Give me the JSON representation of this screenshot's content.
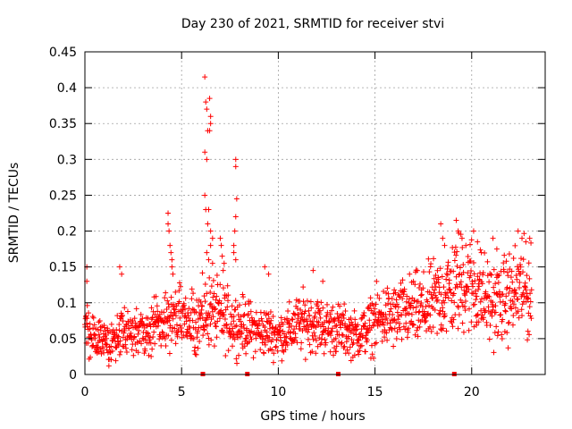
{
  "chart_data": {
    "type": "scatter",
    "title": "Day 230 of 2021, SRMTID for receiver stvi",
    "xlabel": "GPS time / hours",
    "ylabel": "SRMTID / TECUs",
    "xlim": [
      0,
      23.8
    ],
    "ylim": [
      0,
      0.45
    ],
    "x_ticks": [
      0,
      5,
      10,
      15,
      20
    ],
    "x_tick_labels": [
      "0",
      "5",
      "10",
      "15",
      "20"
    ],
    "y_ticks": [
      0,
      0.05,
      0.1,
      0.15,
      0.2,
      0.25,
      0.3,
      0.35,
      0.4,
      0.45
    ],
    "y_tick_labels": [
      "0",
      "0.05",
      "0.1",
      "0.15",
      "0.2",
      "0.25",
      "0.3",
      "0.35",
      "0.4",
      "0.45"
    ],
    "grid": true,
    "marker": "plus",
    "series_color": "#ff0000",
    "background_curve": [
      {
        "x": 0.0,
        "y": 0.07
      },
      {
        "x": 0.5,
        "y": 0.05
      },
      {
        "x": 1.0,
        "y": 0.045
      },
      {
        "x": 1.5,
        "y": 0.05
      },
      {
        "x": 2.0,
        "y": 0.06
      },
      {
        "x": 2.5,
        "y": 0.055
      },
      {
        "x": 3.0,
        "y": 0.06
      },
      {
        "x": 3.5,
        "y": 0.065
      },
      {
        "x": 4.0,
        "y": 0.07
      },
      {
        "x": 4.5,
        "y": 0.08
      },
      {
        "x": 5.0,
        "y": 0.075
      },
      {
        "x": 5.5,
        "y": 0.07
      },
      {
        "x": 6.0,
        "y": 0.08
      },
      {
        "x": 6.5,
        "y": 0.09
      },
      {
        "x": 7.0,
        "y": 0.08
      },
      {
        "x": 7.5,
        "y": 0.075
      },
      {
        "x": 8.0,
        "y": 0.07
      },
      {
        "x": 8.5,
        "y": 0.065
      },
      {
        "x": 9.0,
        "y": 0.06
      },
      {
        "x": 9.5,
        "y": 0.06
      },
      {
        "x": 10.0,
        "y": 0.055
      },
      {
        "x": 10.5,
        "y": 0.06
      },
      {
        "x": 11.0,
        "y": 0.07
      },
      {
        "x": 11.5,
        "y": 0.075
      },
      {
        "x": 12.0,
        "y": 0.07
      },
      {
        "x": 12.5,
        "y": 0.065
      },
      {
        "x": 13.0,
        "y": 0.065
      },
      {
        "x": 13.5,
        "y": 0.06
      },
      {
        "x": 14.0,
        "y": 0.055
      },
      {
        "x": 14.5,
        "y": 0.06
      },
      {
        "x": 15.0,
        "y": 0.075
      },
      {
        "x": 15.5,
        "y": 0.08
      },
      {
        "x": 16.0,
        "y": 0.08
      },
      {
        "x": 16.5,
        "y": 0.085
      },
      {
        "x": 17.0,
        "y": 0.09
      },
      {
        "x": 17.5,
        "y": 0.09
      },
      {
        "x": 18.0,
        "y": 0.1
      },
      {
        "x": 18.5,
        "y": 0.11
      },
      {
        "x": 19.0,
        "y": 0.12
      },
      {
        "x": 19.5,
        "y": 0.13
      },
      {
        "x": 20.0,
        "y": 0.125
      },
      {
        "x": 20.5,
        "y": 0.11
      },
      {
        "x": 21.0,
        "y": 0.1
      },
      {
        "x": 21.5,
        "y": 0.1
      },
      {
        "x": 22.0,
        "y": 0.11
      },
      {
        "x": 22.5,
        "y": 0.12
      },
      {
        "x": 23.0,
        "y": 0.11
      }
    ],
    "spikes": [
      {
        "x": 0.1,
        "y": 0.15
      },
      {
        "x": 0.1,
        "y": 0.13
      },
      {
        "x": 1.8,
        "y": 0.15
      },
      {
        "x": 1.9,
        "y": 0.14
      },
      {
        "x": 4.3,
        "y": 0.225
      },
      {
        "x": 4.3,
        "y": 0.21
      },
      {
        "x": 4.35,
        "y": 0.2
      },
      {
        "x": 4.4,
        "y": 0.18
      },
      {
        "x": 4.45,
        "y": 0.17
      },
      {
        "x": 4.5,
        "y": 0.16
      },
      {
        "x": 4.5,
        "y": 0.15
      },
      {
        "x": 4.55,
        "y": 0.14
      },
      {
        "x": 6.2,
        "y": 0.415
      },
      {
        "x": 6.25,
        "y": 0.38
      },
      {
        "x": 6.3,
        "y": 0.37
      },
      {
        "x": 6.45,
        "y": 0.385
      },
      {
        "x": 6.5,
        "y": 0.36
      },
      {
        "x": 6.5,
        "y": 0.35
      },
      {
        "x": 6.35,
        "y": 0.34
      },
      {
        "x": 6.45,
        "y": 0.34
      },
      {
        "x": 6.2,
        "y": 0.31
      },
      {
        "x": 6.3,
        "y": 0.3
      },
      {
        "x": 6.2,
        "y": 0.25
      },
      {
        "x": 6.25,
        "y": 0.23
      },
      {
        "x": 6.4,
        "y": 0.23
      },
      {
        "x": 6.35,
        "y": 0.21
      },
      {
        "x": 6.5,
        "y": 0.2
      },
      {
        "x": 6.6,
        "y": 0.19
      },
      {
        "x": 6.5,
        "y": 0.18
      },
      {
        "x": 6.3,
        "y": 0.17
      },
      {
        "x": 6.4,
        "y": 0.16
      },
      {
        "x": 6.6,
        "y": 0.155
      },
      {
        "x": 7.0,
        "y": 0.19
      },
      {
        "x": 7.05,
        "y": 0.18
      },
      {
        "x": 7.1,
        "y": 0.165
      },
      {
        "x": 7.2,
        "y": 0.155
      },
      {
        "x": 7.15,
        "y": 0.145
      },
      {
        "x": 7.8,
        "y": 0.3
      },
      {
        "x": 7.8,
        "y": 0.29
      },
      {
        "x": 7.85,
        "y": 0.245
      },
      {
        "x": 7.8,
        "y": 0.22
      },
      {
        "x": 7.75,
        "y": 0.2
      },
      {
        "x": 7.7,
        "y": 0.18
      },
      {
        "x": 7.7,
        "y": 0.17
      },
      {
        "x": 7.8,
        "y": 0.16
      },
      {
        "x": 9.3,
        "y": 0.15
      },
      {
        "x": 9.5,
        "y": 0.14
      },
      {
        "x": 11.8,
        "y": 0.145
      },
      {
        "x": 12.3,
        "y": 0.13
      },
      {
        "x": 18.4,
        "y": 0.21
      },
      {
        "x": 18.5,
        "y": 0.19
      },
      {
        "x": 18.6,
        "y": 0.18
      },
      {
        "x": 19.2,
        "y": 0.215
      },
      {
        "x": 19.3,
        "y": 0.2
      },
      {
        "x": 19.5,
        "y": 0.19
      },
      {
        "x": 19.7,
        "y": 0.18
      },
      {
        "x": 20.1,
        "y": 0.2
      },
      {
        "x": 20.3,
        "y": 0.185
      },
      {
        "x": 20.5,
        "y": 0.17
      },
      {
        "x": 21.1,
        "y": 0.19
      },
      {
        "x": 21.3,
        "y": 0.175
      },
      {
        "x": 22.4,
        "y": 0.2
      },
      {
        "x": 22.6,
        "y": 0.19
      },
      {
        "x": 22.8,
        "y": 0.185
      },
      {
        "x": 23.0,
        "y": 0.19
      }
    ],
    "bottom_markers": [
      6.1,
      8.4,
      13.1,
      19.1
    ]
  }
}
